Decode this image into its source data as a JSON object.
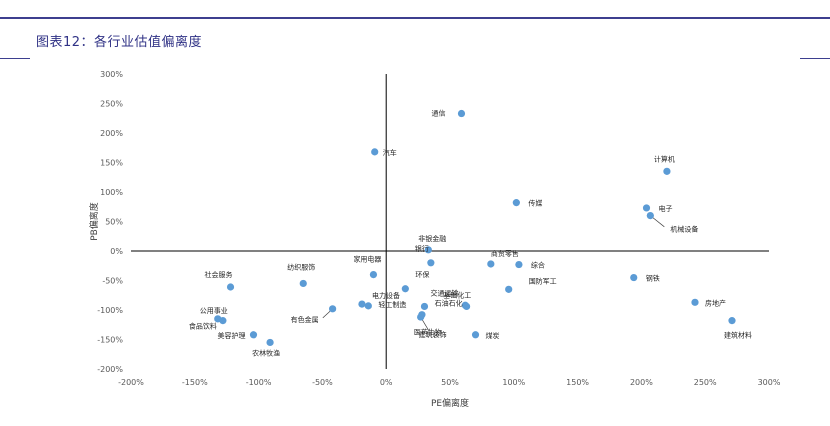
{
  "title": "图表12：各行业估值偏离度",
  "chart_data": {
    "type": "scatter",
    "title": "",
    "xlabel": "PE偏离度",
    "ylabel": "PB偏离度",
    "xlim": [
      -2.0,
      3.0
    ],
    "ylim": [
      -2.0,
      3.0
    ],
    "x_ticks": [
      "-200%",
      "-150%",
      "-100%",
      "-50%",
      "0%",
      "50%",
      "100%",
      "150%",
      "200%",
      "250%",
      "300%"
    ],
    "y_ticks": [
      "300%",
      "250%",
      "200%",
      "150%",
      "100%",
      "50%",
      "0%",
      "-50%",
      "-100%",
      "-150%",
      "-200%"
    ],
    "grid": false,
    "marker_color": "#5b9bd5",
    "points": [
      {
        "name": "通信",
        "x": 0.59,
        "y": 2.33
      },
      {
        "name": "汽车",
        "x": -0.09,
        "y": 1.68
      },
      {
        "name": "计算机",
        "x": 2.2,
        "y": 1.35
      },
      {
        "name": "传媒",
        "x": 1.02,
        "y": 0.82
      },
      {
        "name": "电子",
        "x": 2.04,
        "y": 0.73
      },
      {
        "name": "机械设备",
        "x": 2.07,
        "y": 0.6
      },
      {
        "name": "非银金融",
        "x": 0.33,
        "y": 0.02
      },
      {
        "name": "银行",
        "x": 0.35,
        "y": -0.2
      },
      {
        "name": "商贸零售",
        "x": 0.82,
        "y": -0.22
      },
      {
        "name": "综合",
        "x": 1.04,
        "y": -0.23
      },
      {
        "name": "家用电器",
        "x": -0.1,
        "y": -0.4
      },
      {
        "name": "环保",
        "x": 0.15,
        "y": -0.64
      },
      {
        "name": "社会服务",
        "x": -1.22,
        "y": -0.61
      },
      {
        "name": "纺织服饰",
        "x": -0.65,
        "y": -0.55
      },
      {
        "name": "钢铁",
        "x": 1.94,
        "y": -0.45
      },
      {
        "name": "国防军工",
        "x": 0.96,
        "y": -0.65
      },
      {
        "name": "基础化工",
        "x": 0.62,
        "y": -0.92
      },
      {
        "name": "石油石化",
        "x": 0.63,
        "y": -0.94
      },
      {
        "name": "交通运输",
        "x": 0.3,
        "y": -0.94
      },
      {
        "name": "电力设备",
        "x": -0.19,
        "y": -0.9
      },
      {
        "name": "轻工制造",
        "x": -0.14,
        "y": -0.93
      },
      {
        "name": "有色金属",
        "x": -0.42,
        "y": -0.98
      },
      {
        "name": "医药生物",
        "x": 0.28,
        "y": -1.08
      },
      {
        "name": "建筑装饰",
        "x": 0.27,
        "y": -1.12
      },
      {
        "name": "煤炭",
        "x": 0.7,
        "y": -1.42
      },
      {
        "name": "房地产",
        "x": 2.42,
        "y": -0.87
      },
      {
        "name": "建筑材料",
        "x": 2.71,
        "y": -1.18
      },
      {
        "name": "公用事业",
        "x": -1.32,
        "y": -1.15
      },
      {
        "name": "食品饮料",
        "x": -1.28,
        "y": -1.18
      },
      {
        "name": "美容护理",
        "x": -1.04,
        "y": -1.42
      },
      {
        "name": "农林牧渔",
        "x": -0.91,
        "y": -1.55
      }
    ]
  }
}
